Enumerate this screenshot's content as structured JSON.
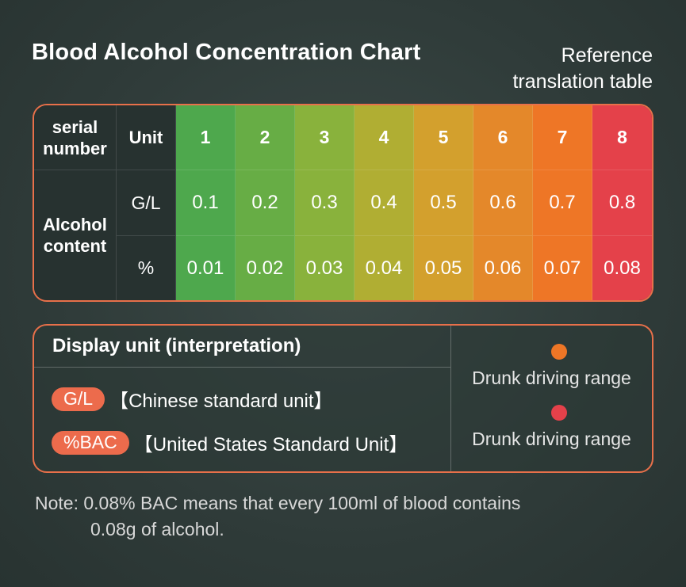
{
  "title": "Blood Alcohol Concentration Chart",
  "reference": [
    "Reference",
    "translation table"
  ],
  "table": {
    "serial_header": "serial number",
    "unit_header": "Unit",
    "columns": [
      "1",
      "2",
      "3",
      "4",
      "5",
      "6",
      "7",
      "8"
    ],
    "row_group_label": "Alcohol content",
    "rows": [
      {
        "unit": "G/L",
        "values": [
          "0.1",
          "0.2",
          "0.3",
          "0.4",
          "0.5",
          "0.6",
          "0.7",
          "0.8"
        ]
      },
      {
        "unit": "%",
        "values": [
          "0.01",
          "0.02",
          "0.03",
          "0.04",
          "0.05",
          "0.06",
          "0.07",
          "0.08"
        ]
      }
    ],
    "column_colors": [
      "#4ea84d",
      "#67ad45",
      "#89b23c",
      "#b0ae33",
      "#d3a02d",
      "#e4882a",
      "#ee7626",
      "#e4414a"
    ]
  },
  "display_unit": {
    "heading": "Display unit (interpretation)",
    "units": [
      {
        "badge": "G/L",
        "description": "【Chinese standard unit】"
      },
      {
        "badge": "%BAC",
        "description": "【United States Standard Unit】"
      }
    ],
    "ranges": [
      {
        "color": "#ee7626",
        "label": "Drunk driving range"
      },
      {
        "color": "#e4414a",
        "label": "Drunk driving range"
      }
    ]
  },
  "note": {
    "line1": "Note: 0.08% BAC means that every 100ml of blood contains",
    "line2": "0.08g of alcohol."
  }
}
